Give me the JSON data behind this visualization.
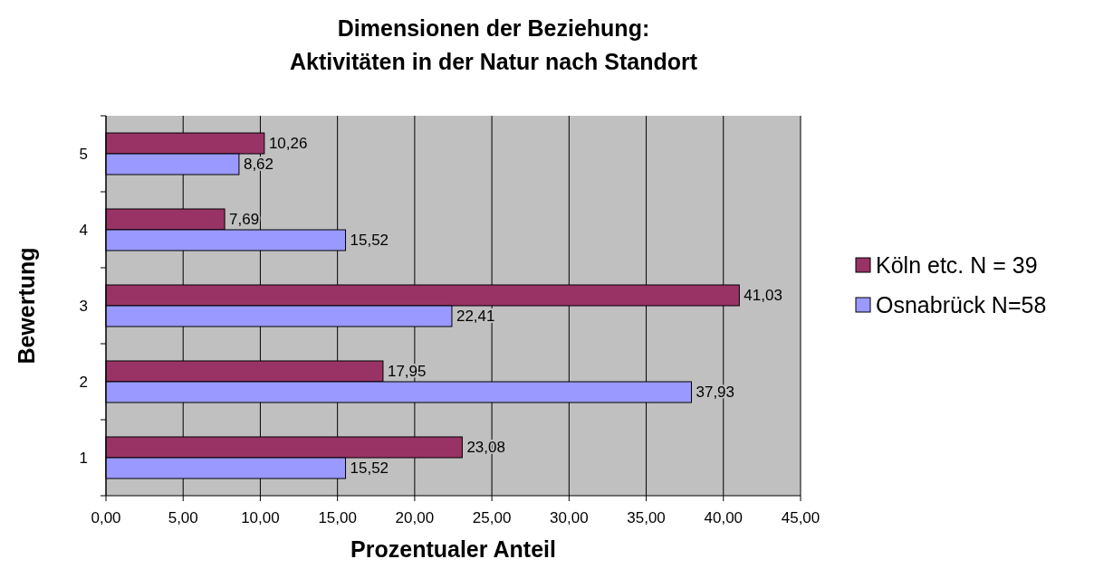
{
  "chart_data": {
    "type": "bar",
    "orientation": "horizontal",
    "title": "Dimensionen der Beziehung:\nAktivitäten in der Natur nach Standort",
    "xlabel": "Prozentualer Anteil",
    "ylabel": "Bewertung",
    "categories": [
      "5",
      "4",
      "3",
      "2",
      "1"
    ],
    "series": [
      {
        "name": "Köln etc. N = 39",
        "color": "#993366",
        "values": [
          10.26,
          7.69,
          41.03,
          17.95,
          23.08
        ],
        "value_labels": [
          "10,26",
          "7,69",
          "41,03",
          "17,95",
          "23,08"
        ]
      },
      {
        "name": "Osnabrück N=58",
        "color": "#9999ff",
        "values": [
          8.62,
          15.52,
          22.41,
          37.93,
          15.52
        ],
        "value_labels": [
          "8,62",
          "15,52",
          "22,41",
          "37,93",
          "15,52"
        ]
      }
    ],
    "xlim": [
      0,
      45
    ],
    "xticks": [
      {
        "value": 0,
        "label": "0,00"
      },
      {
        "value": 5,
        "label": "5,00"
      },
      {
        "value": 10,
        "label": "10,00"
      },
      {
        "value": 15,
        "label": "15,00"
      },
      {
        "value": 20,
        "label": "20,00"
      },
      {
        "value": 25,
        "label": "25,00"
      },
      {
        "value": 30,
        "label": "30,00"
      },
      {
        "value": 35,
        "label": "35,00"
      },
      {
        "value": 40,
        "label": "40,00"
      },
      {
        "value": 45,
        "label": "45,00"
      }
    ],
    "grid": "x",
    "legend": "right"
  }
}
